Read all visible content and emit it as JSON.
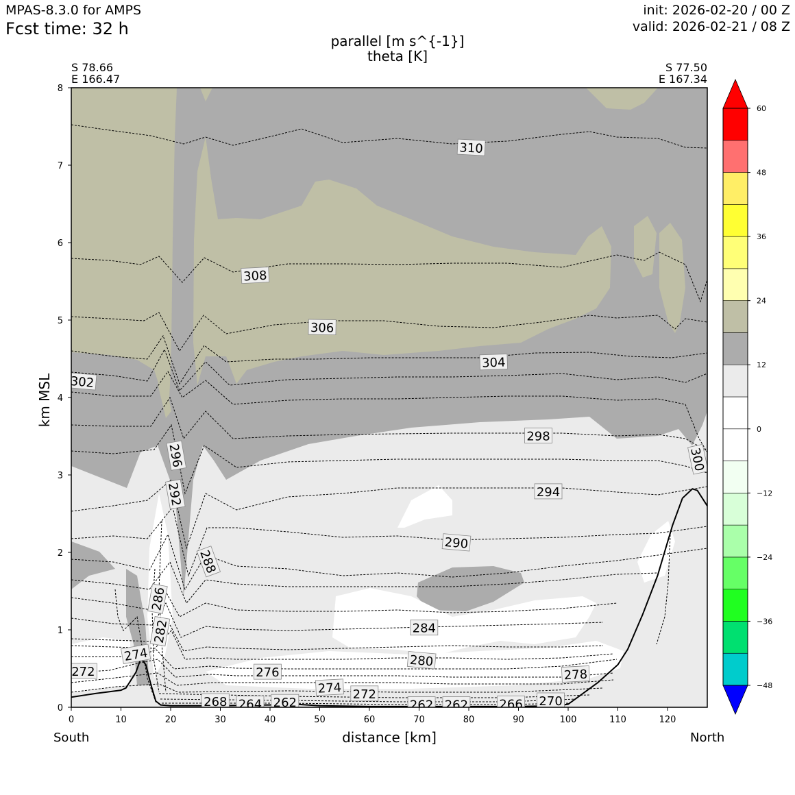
{
  "header": {
    "model": "MPAS-8.3.0 for AMPS",
    "fcst_time": "Fcst time:   32 h",
    "init": "init: 2026-02-20 / 00 Z",
    "valid": "valid: 2026-02-21 / 08 Z"
  },
  "endpoints": {
    "left_lat": "S 78.66",
    "left_lon": "E 166.47",
    "right_lat": "S 77.50",
    "right_lon": "E 167.34",
    "south": "South",
    "north": "North"
  },
  "chart_data": {
    "type": "cross-section contour",
    "title": "parallel [m s^{-1}]",
    "subtitle": "theta [K]",
    "xlabel": "distance [km]",
    "ylabel": "km MSL",
    "xlim": [
      0,
      128
    ],
    "ylim": [
      0,
      8
    ],
    "x_ticks": [
      0,
      10,
      20,
      30,
      40,
      50,
      60,
      70,
      80,
      90,
      100,
      110,
      120
    ],
    "y_ticks": [
      0,
      1,
      2,
      3,
      4,
      5,
      6,
      7,
      8
    ],
    "colorbar": {
      "levels": [
        -54,
        -48,
        -42,
        -36,
        -30,
        -24,
        -18,
        -12,
        -6,
        0,
        6,
        12,
        18,
        24,
        30,
        36,
        42,
        48,
        54,
        60
      ],
      "colors": [
        "#0000ff",
        "#00cccc",
        "#00e070",
        "#20ff20",
        "#66ff66",
        "#aaffaa",
        "#d8ffd8",
        "#f2fff2",
        "#ffffff",
        "#ffffff",
        "#ebebeb",
        "#acacac",
        "#bfbfa6",
        "#ffffb0",
        "#ffff77",
        "#ffff33",
        "#ffee66",
        "#ff7070",
        "#ff0000"
      ],
      "tick_labels": [
        "60",
        "48",
        "36",
        "24",
        "12",
        "0",
        "−12",
        "−24",
        "−36",
        "−48"
      ],
      "tick_values": [
        60,
        48,
        36,
        24,
        12,
        0,
        -12,
        -24,
        -36,
        -48
      ]
    },
    "terrain": [
      [
        0,
        0.13
      ],
      [
        5,
        0.18
      ],
      [
        10,
        0.22
      ],
      [
        11,
        0.25
      ],
      [
        13,
        0.45
      ],
      [
        14,
        0.63
      ],
      [
        15,
        0.55
      ],
      [
        16,
        0.3
      ],
      [
        17,
        0.08
      ],
      [
        18,
        0.03
      ],
      [
        20,
        0.02
      ],
      [
        30,
        0.02
      ],
      [
        40,
        0.03
      ],
      [
        45,
        0.04
      ],
      [
        50,
        0.02
      ],
      [
        60,
        0.01
      ],
      [
        70,
        0.01
      ],
      [
        80,
        0.01
      ],
      [
        90,
        0.01
      ],
      [
        98,
        0.02
      ],
      [
        100,
        0.04
      ],
      [
        103,
        0.18
      ],
      [
        106,
        0.32
      ],
      [
        110,
        0.55
      ],
      [
        112,
        0.75
      ],
      [
        115,
        1.2
      ],
      [
        118,
        1.7
      ],
      [
        121,
        2.35
      ],
      [
        123,
        2.7
      ],
      [
        125,
        2.82
      ],
      [
        126,
        2.8
      ],
      [
        127,
        2.7
      ],
      [
        128,
        2.6
      ]
    ],
    "theta_contour_labels": [
      {
        "label": "310",
        "x": 80.5,
        "y": 7.22,
        "rot": 3
      },
      {
        "label": "308",
        "x": 37,
        "y": 5.57,
        "rot": -3
      },
      {
        "label": "306",
        "x": 50.5,
        "y": 4.9,
        "rot": 1
      },
      {
        "label": "304",
        "x": 85,
        "y": 4.45,
        "rot": -2
      },
      {
        "label": "302",
        "x": 2.2,
        "y": 4.2,
        "rot": 5
      },
      {
        "label": "298",
        "x": 94,
        "y": 3.5,
        "rot": 0
      },
      {
        "label": "300",
        "x": 126,
        "y": 3.2,
        "rot": 78
      },
      {
        "label": "296",
        "x": 21,
        "y": 3.25,
        "rot": 80
      },
      {
        "label": "292",
        "x": 20.8,
        "y": 2.75,
        "rot": 80
      },
      {
        "label": "294",
        "x": 96,
        "y": 2.78,
        "rot": 0
      },
      {
        "label": "290",
        "x": 77.5,
        "y": 2.12,
        "rot": 5
      },
      {
        "label": "288",
        "x": 27.5,
        "y": 1.88,
        "rot": 70
      },
      {
        "label": "286",
        "x": 17.5,
        "y": 1.4,
        "rot": -80
      },
      {
        "label": "284",
        "x": 71,
        "y": 1.02,
        "rot": 0
      },
      {
        "label": "282",
        "x": 18,
        "y": 0.98,
        "rot": -80
      },
      {
        "label": "280",
        "x": 70.5,
        "y": 0.6,
        "rot": 5
      },
      {
        "label": "278",
        "x": 101.5,
        "y": 0.42,
        "rot": -3
      },
      {
        "label": "276",
        "x": 39.5,
        "y": 0.45,
        "rot": 0
      },
      {
        "label": "274",
        "x": 13,
        "y": 0.68,
        "rot": -10
      },
      {
        "label": "274",
        "x": 52,
        "y": 0.25,
        "rot": -3
      },
      {
        "label": "272",
        "x": 2.4,
        "y": 0.46,
        "rot": 0
      },
      {
        "label": "272",
        "x": 59,
        "y": 0.17,
        "rot": 0
      },
      {
        "label": "270",
        "x": 96.5,
        "y": 0.08,
        "rot": 0
      },
      {
        "label": "268",
        "x": 29,
        "y": 0.07,
        "rot": 0
      },
      {
        "label": "266",
        "x": 88.5,
        "y": 0.04,
        "rot": 0
      },
      {
        "label": "264",
        "x": 36,
        "y": 0.04,
        "rot": 0
      },
      {
        "label": "262",
        "x": 43,
        "y": 0.06,
        "rot": 0
      },
      {
        "label": "262",
        "x": 70.5,
        "y": 0.03,
        "rot": 0
      },
      {
        "label": "262",
        "x": 77.5,
        "y": 0.03,
        "rot": 0
      }
    ]
  }
}
